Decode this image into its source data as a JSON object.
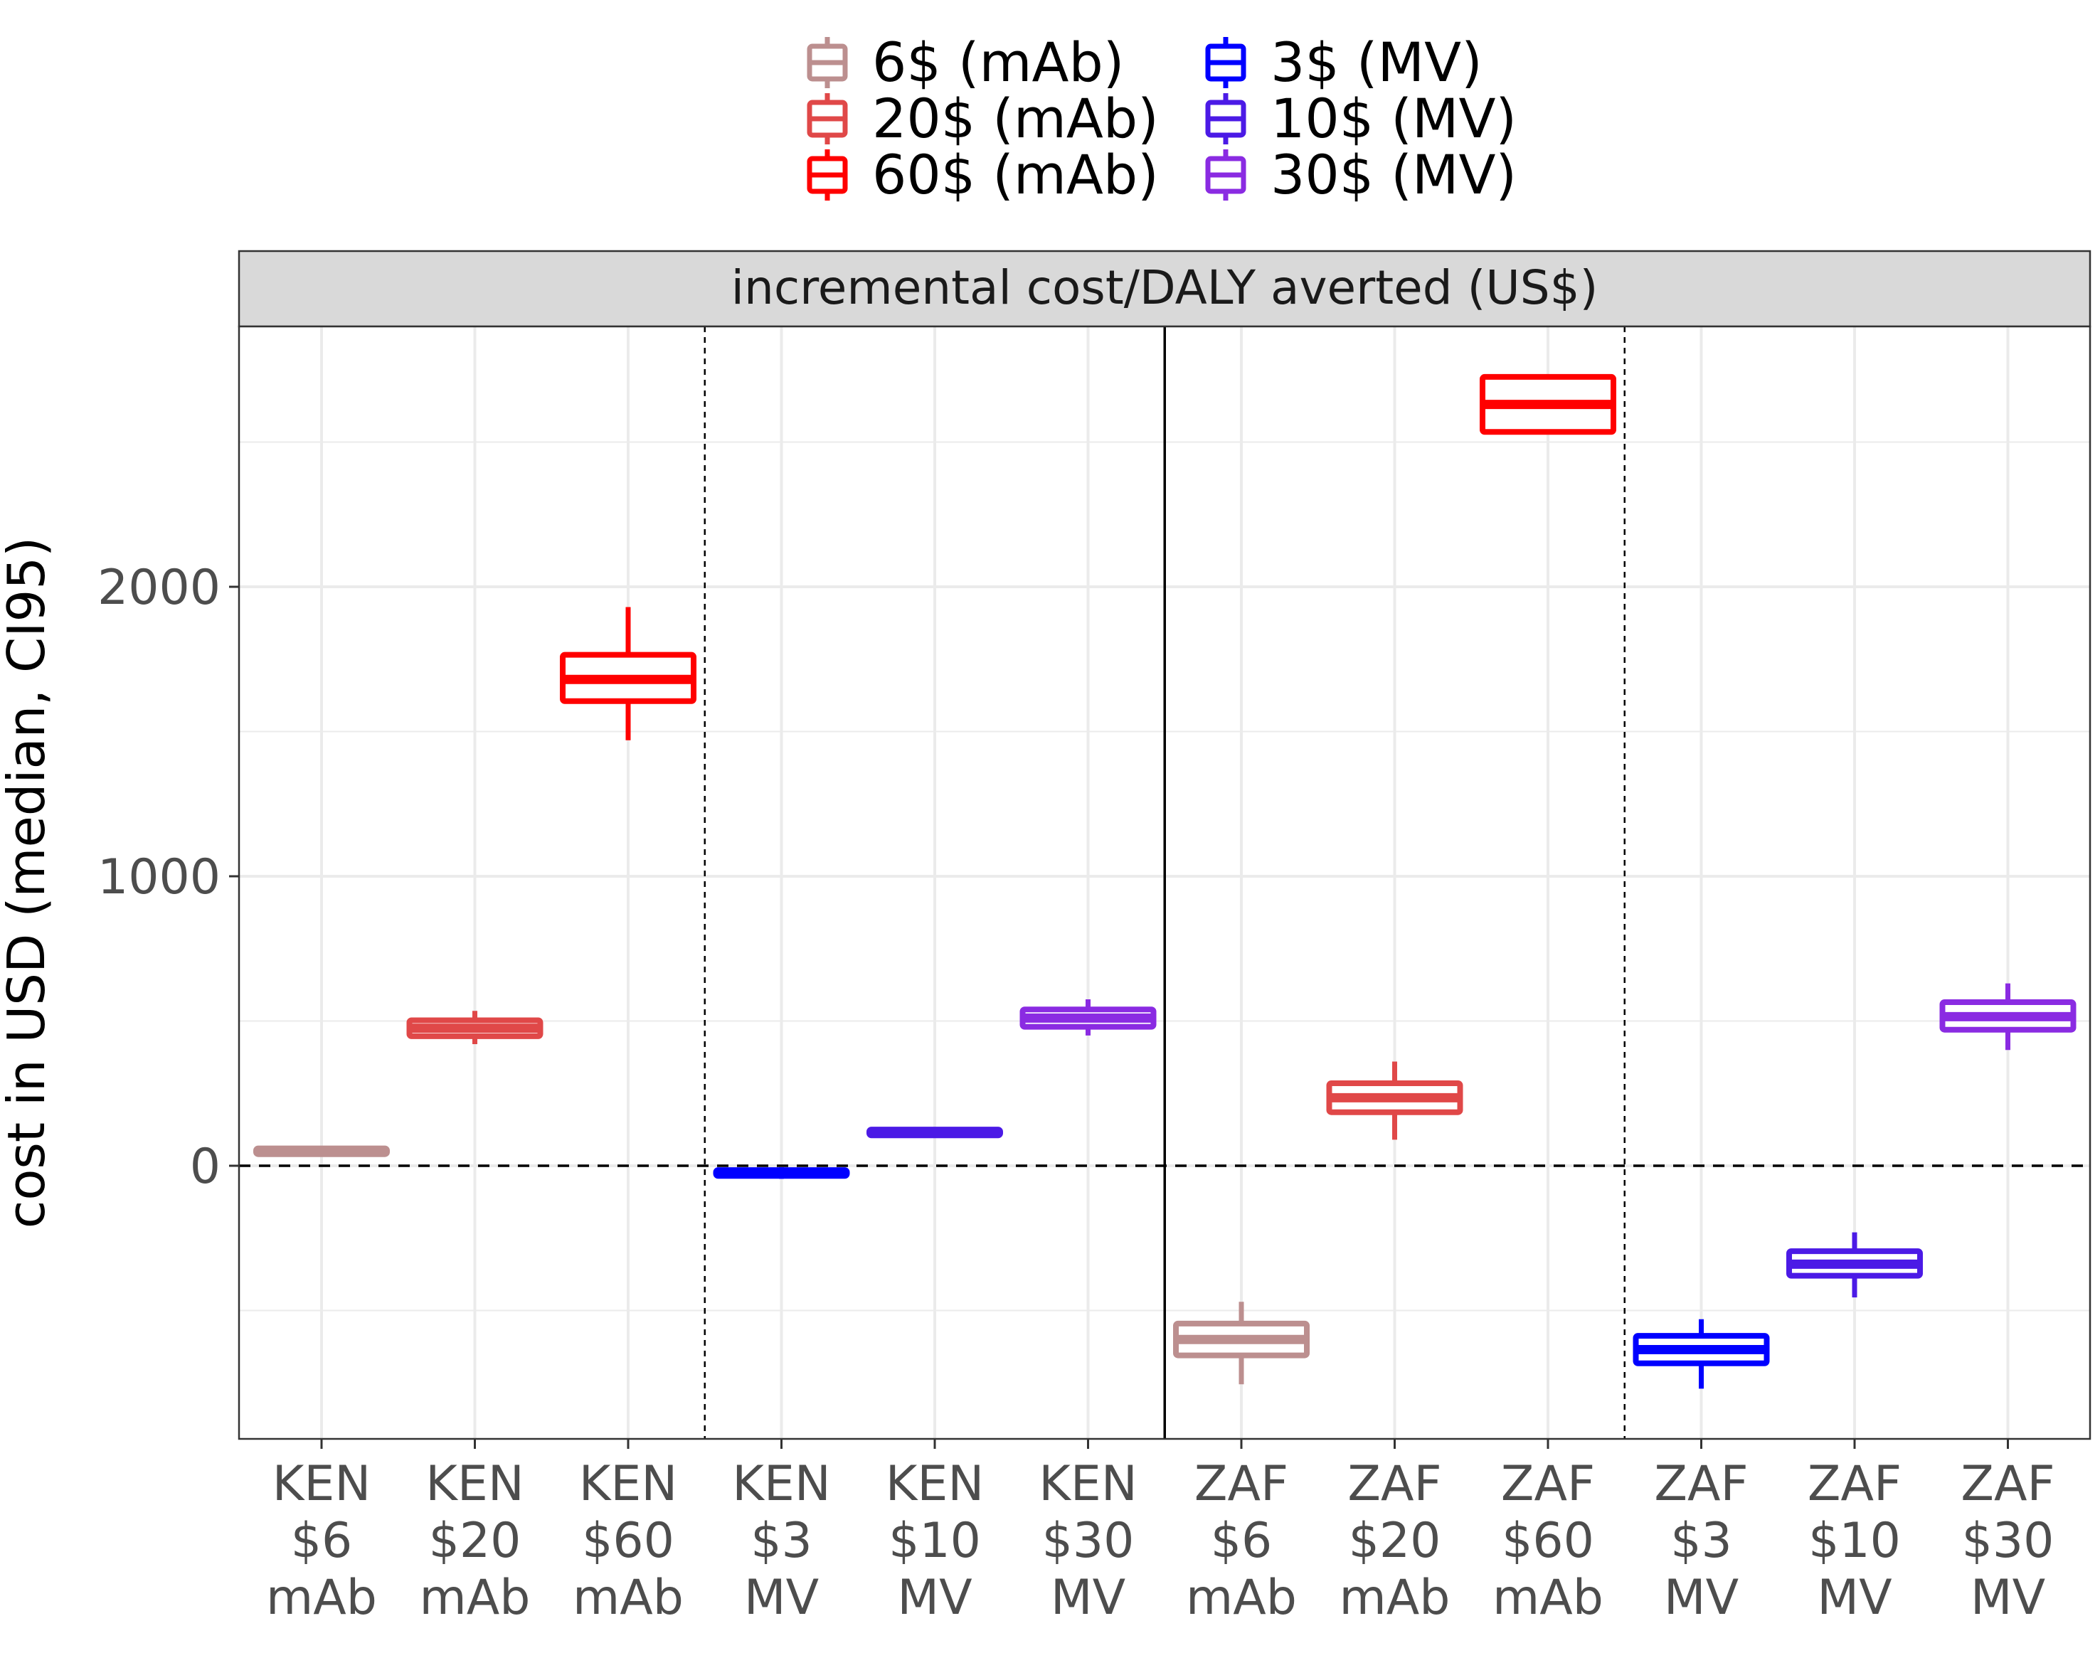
{
  "chart_data": {
    "type": "boxplot",
    "facet_label": "incremental cost/DALY averted (US$)",
    "ylabel": "cost in USD (median, CI95)",
    "xlabel": "",
    "ylim": [
      -940,
      2920
    ],
    "yticks": [
      0,
      1000,
      2000
    ],
    "grid": true,
    "reference_line_y": 0,
    "legend_position": "top",
    "legend": [
      {
        "label": "6$ (mAb)",
        "color": "#BC8F8F"
      },
      {
        "label": "20$ (mAb)",
        "color": "#E04848"
      },
      {
        "label": "60$ (mAb)",
        "color": "#FF0000"
      },
      {
        "label": "3$ (MV)",
        "color": "#0000FF"
      },
      {
        "label": "10$ (MV)",
        "color": "#4B1AE6"
      },
      {
        "label": "30$ (MV)",
        "color": "#8A2BE2"
      }
    ],
    "categories": [
      {
        "label": [
          "KEN",
          "$6",
          "mAb"
        ],
        "color": "#BC8F8F",
        "min": 35,
        "q1": 40,
        "median": 50,
        "q3": 60,
        "max": 65
      },
      {
        "label": [
          "KEN",
          "$20",
          "mAb"
        ],
        "color": "#E04848",
        "min": 420,
        "q1": 445,
        "median": 475,
        "q3": 500,
        "max": 535
      },
      {
        "label": [
          "KEN",
          "$60",
          "mAb"
        ],
        "color": "#FF0000",
        "min": 1470,
        "q1": 1605,
        "median": 1680,
        "q3": 1765,
        "max": 1930
      },
      {
        "label": [
          "KEN",
          "$3",
          "MV"
        ],
        "color": "#0000FF",
        "min": -45,
        "q1": -35,
        "median": -25,
        "q3": -15,
        "max": -5
      },
      {
        "label": [
          "KEN",
          "$10",
          "MV"
        ],
        "color": "#4B1AE6",
        "min": 100,
        "q1": 105,
        "median": 115,
        "q3": 125,
        "max": 130
      },
      {
        "label": [
          "KEN",
          "$30",
          "MV"
        ],
        "color": "#8A2BE2",
        "min": 450,
        "q1": 480,
        "median": 510,
        "q3": 540,
        "max": 575
      },
      {
        "label": [
          "ZAF",
          "$6",
          "mAb"
        ],
        "color": "#BC8F8F",
        "min": -755,
        "q1": -655,
        "median": -600,
        "q3": -545,
        "max": -470
      },
      {
        "label": [
          "ZAF",
          "$20",
          "mAb"
        ],
        "color": "#E04848",
        "min": 90,
        "q1": 185,
        "median": 235,
        "q3": 285,
        "max": 360
      },
      {
        "label": [
          "ZAF",
          "$60",
          "mAb"
        ],
        "color": "#FF0000",
        "min": 2530,
        "q1": 2530,
        "median": 2630,
        "q3": 2720,
        "max": 2720
      },
      {
        "label": [
          "ZAF",
          "$3",
          "MV"
        ],
        "color": "#0000FF",
        "min": -770,
        "q1": -685,
        "median": -635,
        "q3": -590,
        "max": -530
      },
      {
        "label": [
          "ZAF",
          "$10",
          "MV"
        ],
        "color": "#4B1AE6",
        "min": -455,
        "q1": -380,
        "median": -340,
        "q3": -295,
        "max": -230
      },
      {
        "label": [
          "ZAF",
          "$30",
          "MV"
        ],
        "color": "#8A2BE2",
        "min": 400,
        "q1": 470,
        "median": 515,
        "q3": 565,
        "max": 630
      }
    ]
  }
}
